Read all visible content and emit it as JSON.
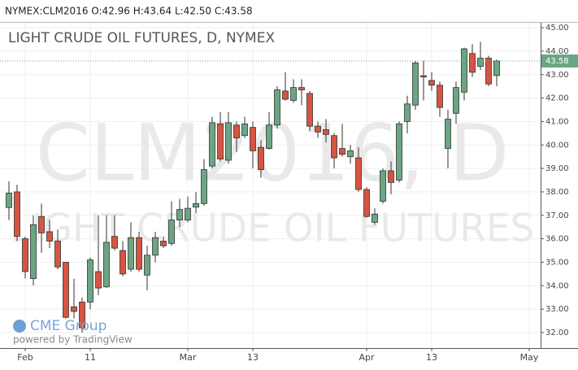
{
  "header": "NYMEX:CLM2016 O:42.96 H:43.64 L:42.50 C:43.58",
  "chart_data": {
    "type": "candlestick",
    "title": "LIGHT CRUDE OIL FUTURES, D, NYMEX",
    "watermark": [
      "CLM2016, D",
      "LIGHT CRUDE OIL FUTURES"
    ],
    "logo": "CME Group",
    "credit": "powered by TradingView",
    "categories": [
      null,
      null,
      "Feb",
      null,
      null,
      null,
      null,
      null,
      null,
      null,
      "11",
      null,
      null,
      null,
      null,
      null,
      null,
      null,
      null,
      null,
      null,
      null,
      "Mar",
      null,
      null,
      null,
      null,
      null,
      null,
      null,
      "13",
      null,
      null,
      null,
      null,
      null,
      null,
      null,
      null,
      null,
      null,
      null,
      null,
      null,
      "Apr",
      null,
      null,
      null,
      null,
      null,
      null,
      null,
      "13",
      null,
      null,
      null,
      null,
      null,
      null,
      null,
      null,
      null,
      null,
      null,
      "May"
    ],
    "open": [
      37.33,
      38.0,
      36.0,
      34.3,
      36.95,
      36.3,
      35.9,
      35.0,
      33.1,
      33.3,
      33.3,
      34.6,
      33.95,
      36.1,
      35.5,
      34.7,
      36.05,
      34.45,
      35.3,
      35.9,
      35.8,
      36.8,
      36.8,
      37.35,
      37.5,
      39.1,
      40.9,
      39.35,
      40.85,
      40.4,
      40.75,
      39.9,
      39.85,
      40.85,
      42.3,
      41.9,
      42.45,
      42.2,
      40.8,
      40.65,
      40.4,
      39.85,
      39.5,
      39.45,
      38.1,
      36.7,
      37.6,
      38.9,
      38.5,
      41.0,
      41.7,
      42.95,
      42.75,
      42.55,
      39.85,
      41.35,
      42.25,
      43.9,
      43.35,
      43.7,
      42.96,
      null,
      null,
      null,
      null
    ],
    "high": [
      38.45,
      38.3,
      36.1,
      37.0,
      37.5,
      36.8,
      36.4,
      35.0,
      34.3,
      33.5,
      35.2,
      37.0,
      37.0,
      37.0,
      35.9,
      36.7,
      36.3,
      35.7,
      36.3,
      36.1,
      37.6,
      37.7,
      37.8,
      38.0,
      39.4,
      41.2,
      41.4,
      41.4,
      41.0,
      41.2,
      41.0,
      40.2,
      41.4,
      42.5,
      43.1,
      42.8,
      42.8,
      42.3,
      41.0,
      41.1,
      40.5,
      40.9,
      40.0,
      39.9,
      38.2,
      37.3,
      39.0,
      39.3,
      41.0,
      42.1,
      43.6,
      43.6,
      43.1,
      42.7,
      41.5,
      42.7,
      44.15,
      44.3,
      44.4,
      43.8,
      43.64,
      null,
      null,
      null,
      null
    ],
    "low": [
      36.8,
      35.9,
      34.3,
      34.0,
      35.4,
      35.6,
      34.7,
      32.6,
      32.6,
      32.0,
      33.0,
      33.6,
      33.9,
      35.5,
      34.4,
      34.6,
      34.6,
      33.8,
      35.0,
      35.6,
      35.7,
      36.5,
      36.7,
      37.1,
      37.4,
      39.0,
      39.3,
      39.2,
      39.7,
      40.3,
      39.0,
      38.6,
      39.8,
      40.7,
      41.9,
      41.8,
      41.7,
      40.6,
      40.3,
      40.1,
      39.0,
      39.5,
      39.2,
      38.0,
      36.9,
      36.6,
      37.5,
      37.9,
      38.4,
      40.5,
      41.5,
      41.9,
      42.3,
      41.2,
      39.0,
      40.9,
      41.9,
      42.9,
      43.2,
      42.5,
      42.5,
      null,
      null,
      null,
      null
    ],
    "close": [
      37.95,
      36.1,
      34.6,
      36.6,
      36.25,
      35.9,
      34.8,
      32.65,
      32.9,
      32.2,
      35.1,
      33.9,
      35.85,
      35.6,
      34.5,
      36.05,
      34.7,
      35.3,
      36.05,
      35.7,
      36.8,
      37.25,
      37.3,
      37.5,
      38.95,
      40.95,
      39.4,
      40.95,
      40.3,
      40.9,
      39.75,
      38.95,
      40.85,
      42.35,
      41.95,
      42.45,
      42.35,
      40.8,
      40.55,
      40.45,
      39.45,
      39.6,
      39.75,
      38.1,
      36.95,
      37.05,
      38.9,
      38.4,
      40.9,
      41.75,
      43.5,
      42.9,
      42.55,
      41.6,
      41.1,
      42.45,
      44.1,
      43.1,
      43.7,
      42.6,
      43.58,
      null,
      null,
      null,
      null
    ],
    "up_color": "#6ba583",
    "down_color": "#d75442",
    "last_price": 43.58,
    "ylim": [
      31.34,
      45.28
    ],
    "yticks": [
      {
        "value": 32,
        "label": "32.00"
      },
      {
        "value": 33,
        "label": "33.00"
      },
      {
        "value": 34,
        "label": "34.00"
      },
      {
        "value": 35,
        "label": "35.00"
      },
      {
        "value": 36,
        "label": "36.00"
      },
      {
        "value": 37,
        "label": "37.00"
      },
      {
        "value": 38,
        "label": "38.00"
      },
      {
        "value": 39,
        "label": "39.00"
      },
      {
        "value": 40,
        "label": "40.00"
      },
      {
        "value": 41,
        "label": "41.00"
      },
      {
        "value": 42,
        "label": "42.00"
      },
      {
        "value": 43,
        "label": "43.00"
      },
      {
        "value": 44,
        "label": "44.00"
      },
      {
        "value": 45,
        "label": "45.00"
      }
    ],
    "grid": true
  }
}
